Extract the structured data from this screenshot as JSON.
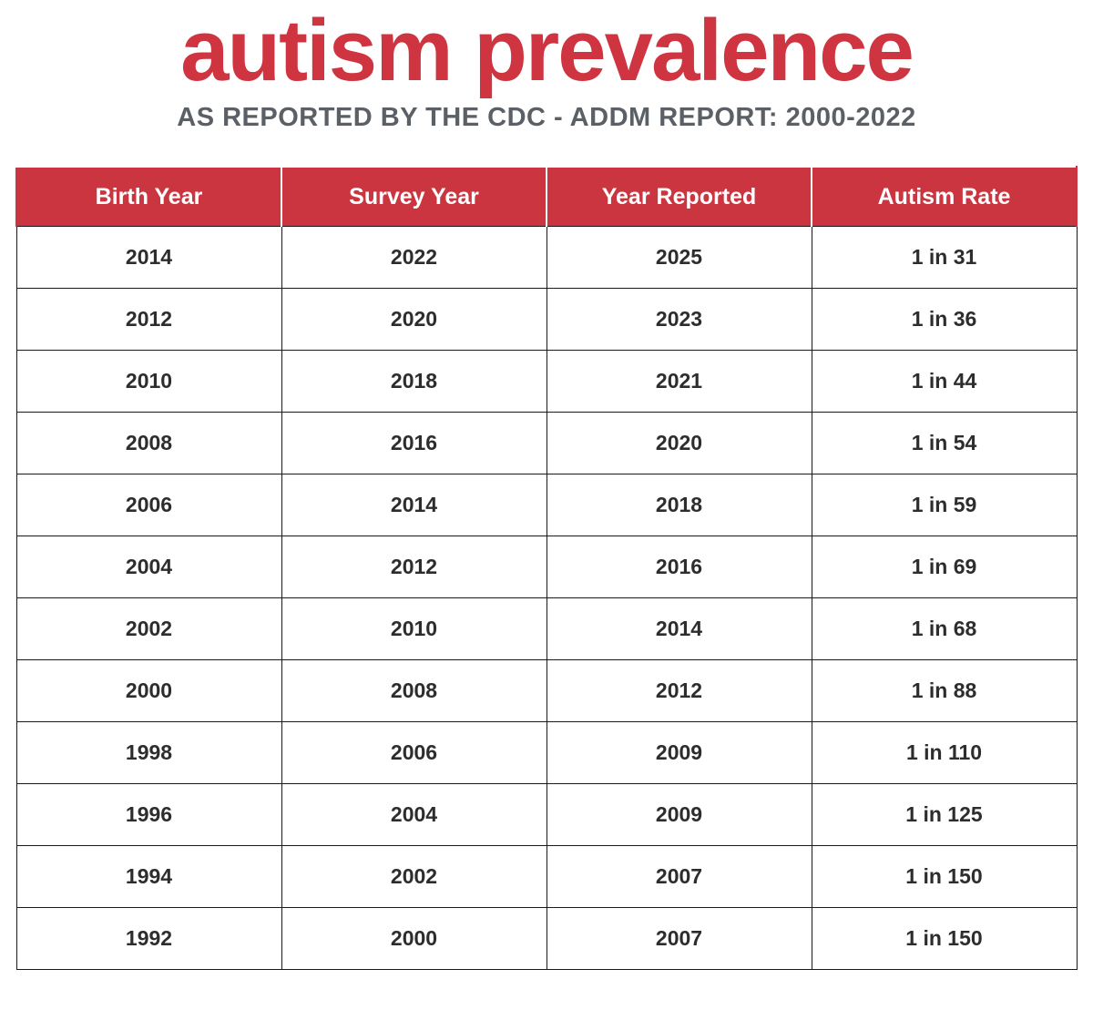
{
  "title": "autism prevalence",
  "subtitle": "AS REPORTED BY THE CDC - ADDM REPORT: 2000-2022",
  "colors": {
    "accent_red": "#cb3540",
    "title_red": "#cf3540",
    "subtitle_gray": "#5a6065",
    "cell_text": "#2d2d2d",
    "border": "#1a1a1a"
  },
  "chart_data": {
    "type": "table",
    "title": "autism prevalence",
    "subtitle": "AS REPORTED BY THE CDC - ADDM REPORT: 2000-2022",
    "columns": [
      "Birth Year",
      "Survey Year",
      "Year Reported",
      "Autism Rate"
    ],
    "rows": [
      [
        "2014",
        "2022",
        "2025",
        "1 in 31"
      ],
      [
        "2012",
        "2020",
        "2023",
        "1 in 36"
      ],
      [
        "2010",
        "2018",
        "2021",
        "1 in 44"
      ],
      [
        "2008",
        "2016",
        "2020",
        "1 in 54"
      ],
      [
        "2006",
        "2014",
        "2018",
        "1 in 59"
      ],
      [
        "2004",
        "2012",
        "2016",
        "1 in 69"
      ],
      [
        "2002",
        "2010",
        "2014",
        "1 in 68"
      ],
      [
        "2000",
        "2008",
        "2012",
        "1 in 88"
      ],
      [
        "1998",
        "2006",
        "2009",
        "1 in 110"
      ],
      [
        "1996",
        "2004",
        "2009",
        "1 in 125"
      ],
      [
        "1994",
        "2002",
        "2007",
        "1 in 150"
      ],
      [
        "1992",
        "2000",
        "2007",
        "1 in 150"
      ]
    ]
  }
}
